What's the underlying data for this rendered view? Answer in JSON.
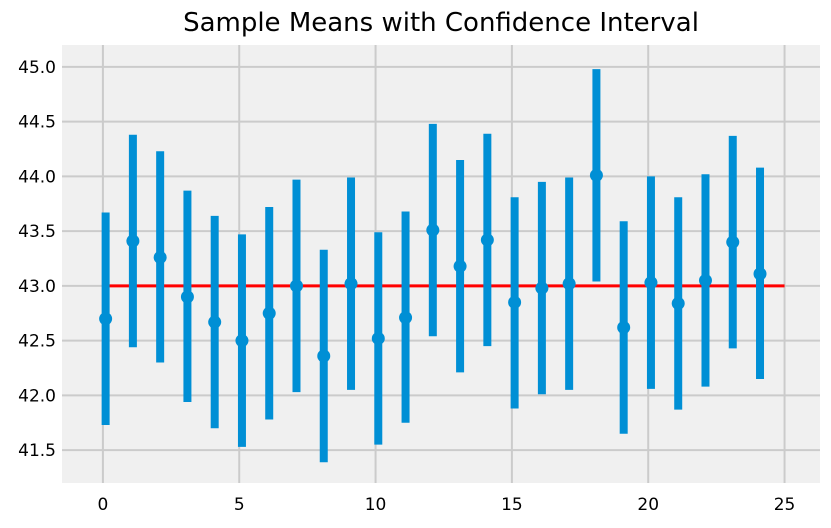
{
  "chart_data": {
    "type": "errorbar",
    "title": "Sample Means with Confidence Interval",
    "xlabel": "",
    "ylabel": "",
    "xlim": [
      -1.5,
      26.3
    ],
    "ylim": [
      41.2,
      45.2
    ],
    "x_ticks": [
      0,
      5,
      10,
      15,
      20,
      25
    ],
    "y_ticks": [
      41.5,
      42.0,
      42.5,
      43.0,
      43.5,
      44.0,
      44.5,
      45.0
    ],
    "y_tick_labels": [
      "41.5",
      "42.0",
      "42.5",
      "43.0",
      "43.5",
      "44.0",
      "44.5",
      "45.0"
    ],
    "grid": true,
    "legend": "none",
    "colors": {
      "background": "#f0f0f0",
      "grid": "#cbcbcb",
      "points": "#008fd5",
      "reference_line": "#ff0000"
    },
    "reference_line": {
      "y": 43.0,
      "x_start": 0,
      "x_end": 25
    },
    "points": [
      {
        "x": 0,
        "y": 42.7,
        "low": 41.73,
        "high": 43.67
      },
      {
        "x": 1,
        "y": 43.41,
        "low": 42.44,
        "high": 44.38
      },
      {
        "x": 2,
        "y": 43.26,
        "low": 42.3,
        "high": 44.23
      },
      {
        "x": 3,
        "y": 42.9,
        "low": 41.94,
        "high": 43.87
      },
      {
        "x": 4,
        "y": 42.67,
        "low": 41.7,
        "high": 43.64
      },
      {
        "x": 5,
        "y": 42.5,
        "low": 41.53,
        "high": 43.47
      },
      {
        "x": 6,
        "y": 42.75,
        "low": 41.78,
        "high": 43.72
      },
      {
        "x": 7,
        "y": 43.0,
        "low": 42.03,
        "high": 43.97
      },
      {
        "x": 8,
        "y": 42.36,
        "low": 41.39,
        "high": 43.33
      },
      {
        "x": 9,
        "y": 43.02,
        "low": 42.05,
        "high": 43.99
      },
      {
        "x": 10,
        "y": 42.52,
        "low": 41.55,
        "high": 43.49
      },
      {
        "x": 11,
        "y": 42.71,
        "low": 41.75,
        "high": 43.68
      },
      {
        "x": 12,
        "y": 43.51,
        "low": 42.54,
        "high": 44.48
      },
      {
        "x": 13,
        "y": 43.18,
        "low": 42.21,
        "high": 44.15
      },
      {
        "x": 14,
        "y": 43.42,
        "low": 42.45,
        "high": 44.39
      },
      {
        "x": 15,
        "y": 42.85,
        "low": 41.88,
        "high": 43.81
      },
      {
        "x": 16,
        "y": 42.98,
        "low": 42.01,
        "high": 43.95
      },
      {
        "x": 17,
        "y": 43.02,
        "low": 42.05,
        "high": 43.99
      },
      {
        "x": 18,
        "y": 44.01,
        "low": 43.04,
        "high": 44.98
      },
      {
        "x": 19,
        "y": 42.62,
        "low": 41.65,
        "high": 43.59
      },
      {
        "x": 20,
        "y": 43.03,
        "low": 42.06,
        "high": 44.0
      },
      {
        "x": 21,
        "y": 42.84,
        "low": 41.87,
        "high": 43.81
      },
      {
        "x": 22,
        "y": 43.05,
        "low": 42.08,
        "high": 44.02
      },
      {
        "x": 23,
        "y": 43.4,
        "low": 42.43,
        "high": 44.37
      },
      {
        "x": 24,
        "y": 43.11,
        "low": 42.15,
        "high": 44.08
      }
    ]
  }
}
